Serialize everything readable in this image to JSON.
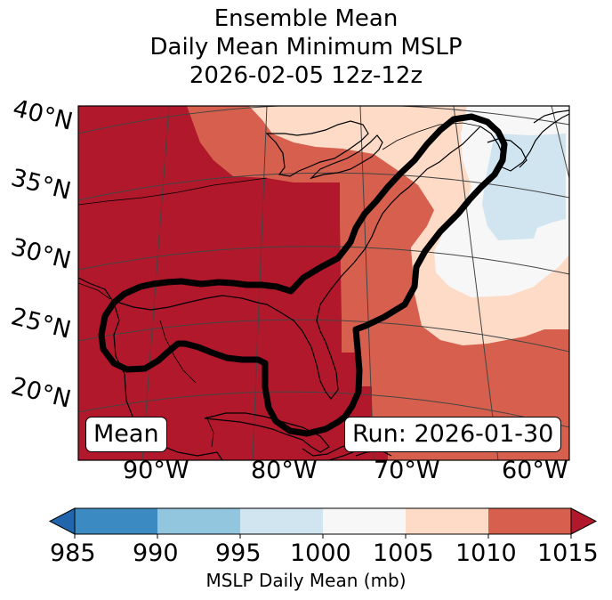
{
  "title": {
    "line1": "Ensemble Mean",
    "line2": "Daily Mean Minimum MSLP",
    "line3": "2026-02-05 12z-12z"
  },
  "lat_labels": [
    "40°N",
    "35°N",
    "30°N",
    "25°N",
    "20°N"
  ],
  "lon_labels": [
    "90°W",
    "80°W",
    "70°W",
    "60°W"
  ],
  "legend_boxes": {
    "left": "Mean",
    "right": "Run: 2026-01-30"
  },
  "colorbar": {
    "ticks": [
      "985",
      "990",
      "995",
      "1000",
      "1005",
      "1010",
      "1015"
    ],
    "label": "MSLP Daily Mean (mb)",
    "colors": [
      "#3b8bc2",
      "#92c5de",
      "#d1e5f0",
      "#f7f7f7",
      "#fddbc7",
      "#d6604d",
      "#b2182b",
      "#2166ac"
    ]
  },
  "map": {
    "colors": {
      "c1015": "#b2182b",
      "c1010": "#d6604d",
      "c1005": "#fddbc7",
      "c1000": "#f7f7f7",
      "c995": "#d1e5f0"
    }
  }
}
